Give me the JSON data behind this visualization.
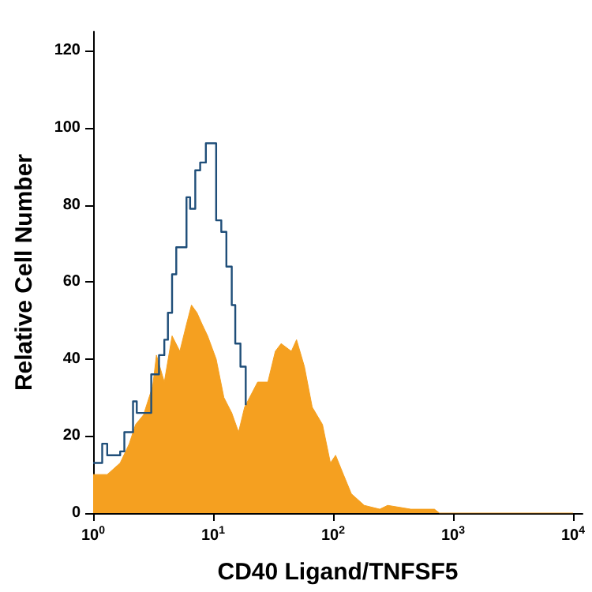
{
  "chart_data": {
    "type": "area",
    "xlabel": "CD40 Ligand/TNFSF5",
    "ylabel": "Relative Cell Number",
    "log": "x",
    "grid": false,
    "xlim": [
      1,
      12000
    ],
    "xticks": [
      {
        "value": 1,
        "label": "10$^{0}$"
      },
      {
        "value": 10,
        "label": "10$^{1}$"
      },
      {
        "value": 100,
        "label": "10$^{2}$"
      },
      {
        "value": 1000,
        "label": "10$^{3}$"
      },
      {
        "value": 10000,
        "label": "10$^{4}$"
      }
    ],
    "ylim": [
      0,
      125
    ],
    "yticks": [
      0,
      20,
      40,
      60,
      80,
      100,
      120
    ],
    "series": [
      {
        "color": "#f5a020",
        "x": [
          1,
          1.31,
          1.68,
          2.0,
          2.26,
          2.63,
          3.14,
          3.37,
          3.92,
          4.55,
          5.28,
          6.0,
          6.6,
          7.34,
          8.1,
          9.0,
          10.6,
          12.3,
          14.3,
          16.3,
          18.3,
          23.5,
          28.6,
          33,
          36.9,
          44.9,
          49.6,
          57.7,
          67,
          81.6,
          95,
          105,
          122,
          142,
          182,
          245,
          285,
          445,
          700,
          770,
          900,
          10000
        ],
        "values": [
          10,
          10,
          13,
          18,
          23,
          25.5,
          33,
          41,
          34,
          46,
          42,
          49,
          54,
          52,
          49,
          46,
          40,
          30,
          26,
          21,
          27.5,
          34,
          34,
          42,
          44,
          42,
          45,
          38,
          27.5,
          23,
          13,
          15,
          10,
          5,
          2,
          1,
          2,
          1,
          1,
          0,
          0,
          0
        ]
      },
      {
        "type": "step",
        "color": "#1f4e79",
        "x": [
          1,
          1.19,
          1.31,
          1.68,
          1.82,
          2.15,
          2.31,
          2.76,
          3.05,
          3.54,
          3.92,
          4.2,
          4.55,
          4.93,
          5.45,
          6.0,
          6.43,
          7.1,
          7.8,
          8.7,
          9.9,
          10.6,
          11.7,
          12.9,
          14.3,
          15.3,
          16.9,
          18.7
        ],
        "values": [
          13,
          18,
          15,
          16,
          21,
          29,
          26,
          26,
          36,
          41,
          45,
          52,
          62,
          69,
          69,
          82,
          79,
          89,
          91,
          96,
          96,
          76,
          73,
          64,
          54,
          44,
          38,
          28
        ]
      }
    ]
  }
}
